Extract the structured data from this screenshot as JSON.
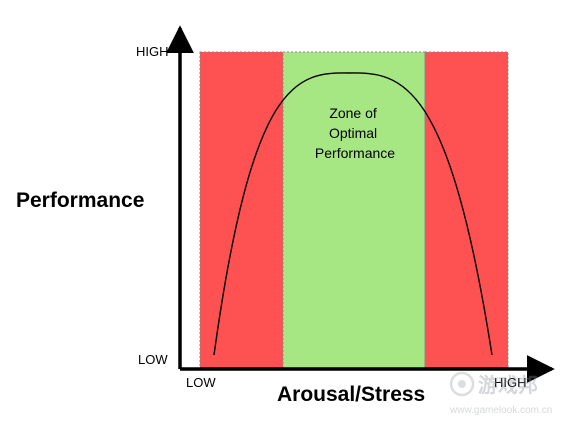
{
  "diagram": {
    "y_axis_title": "Performance",
    "x_axis_title": "Arousal/Stress",
    "y_high_label": "HIGH",
    "y_low_label": "LOW",
    "x_low_label": "LOW",
    "x_high_label": "HIGH",
    "zone_label_lines": [
      "Zone of",
      "Optimal",
      "Performance"
    ],
    "watermark_text": "游戏邦",
    "watermark_url": "www.gamelook.com.cn"
  },
  "colors": {
    "danger_zone": "#fd5152",
    "optimal_zone": "#a6e683",
    "axis": "#000000",
    "curve": "#000000"
  }
}
